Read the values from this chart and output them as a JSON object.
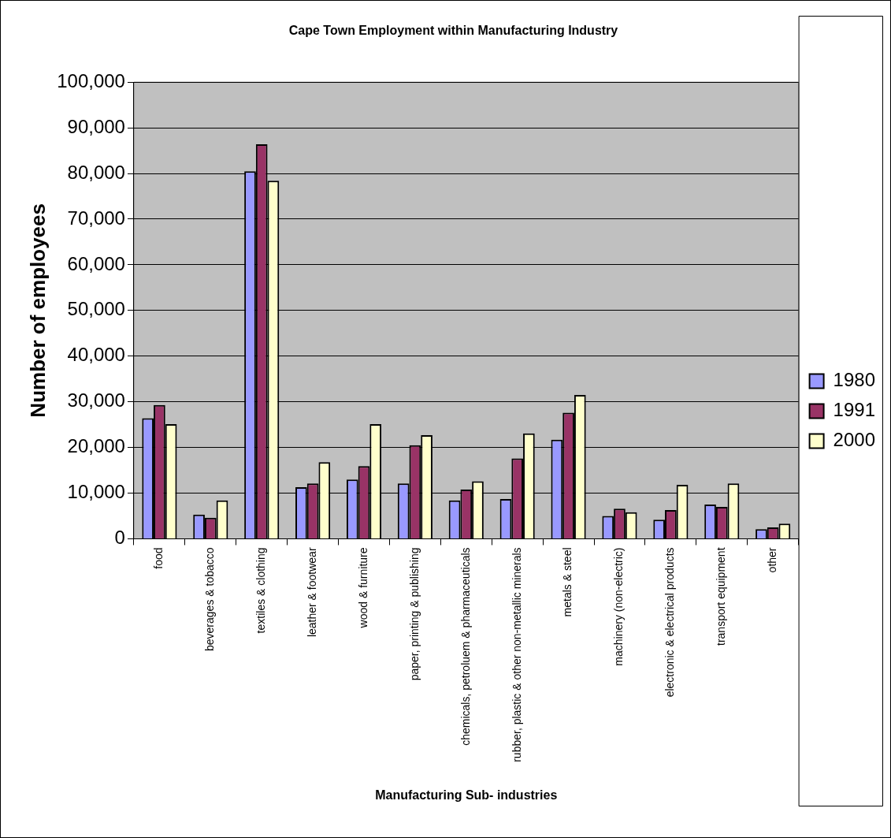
{
  "chart_data": {
    "type": "bar",
    "title": "Cape Town Employment within Manufacturing Industry",
    "xlabel": "Manufacturing Sub- industries",
    "ylabel": "Number of employees",
    "categories": [
      "food",
      "beverages & tobacco",
      "textiles & clothing",
      "leather & footwear",
      "wood & furniture",
      "paper, printing & publishing",
      "chemicals, petroluem & pharmaceuticals",
      "rubber, plastic & other non-metallic minerals",
      "metals & steel",
      "machinery (non-electric)",
      "electronic & electrical products",
      "transport equipment",
      "other"
    ],
    "series": [
      {
        "name": "1980",
        "color": "#9999ff",
        "values": [
          26400,
          5300,
          80500,
          11300,
          13000,
          12100,
          8400,
          8700,
          21700,
          5000,
          4200,
          7500,
          2100
        ]
      },
      {
        "name": "1991",
        "color": "#993366",
        "values": [
          29300,
          4600,
          86400,
          12100,
          15900,
          20500,
          10800,
          17600,
          27600,
          6600,
          6300,
          7000,
          2500
        ]
      },
      {
        "name": "2000",
        "color": "#ffffcc",
        "values": [
          25100,
          8400,
          78400,
          16800,
          25100,
          22700,
          12600,
          23100,
          31500,
          5800,
          11800,
          12100,
          3300
        ]
      }
    ],
    "ylim": [
      0,
      100000
    ],
    "yticks": [
      {
        "value": 0,
        "label": "0"
      },
      {
        "value": 10000,
        "label": "10,000"
      },
      {
        "value": 20000,
        "label": "20,000"
      },
      {
        "value": 30000,
        "label": "30,000"
      },
      {
        "value": 40000,
        "label": "40,000"
      },
      {
        "value": 50000,
        "label": "50,000"
      },
      {
        "value": 60000,
        "label": "60,000"
      },
      {
        "value": 70000,
        "label": "70,000"
      },
      {
        "value": 80000,
        "label": "80,000"
      },
      {
        "value": 90000,
        "label": "90,000"
      },
      {
        "value": 100000,
        "label": "100,000"
      }
    ],
    "grid": "y",
    "legend": "right"
  }
}
